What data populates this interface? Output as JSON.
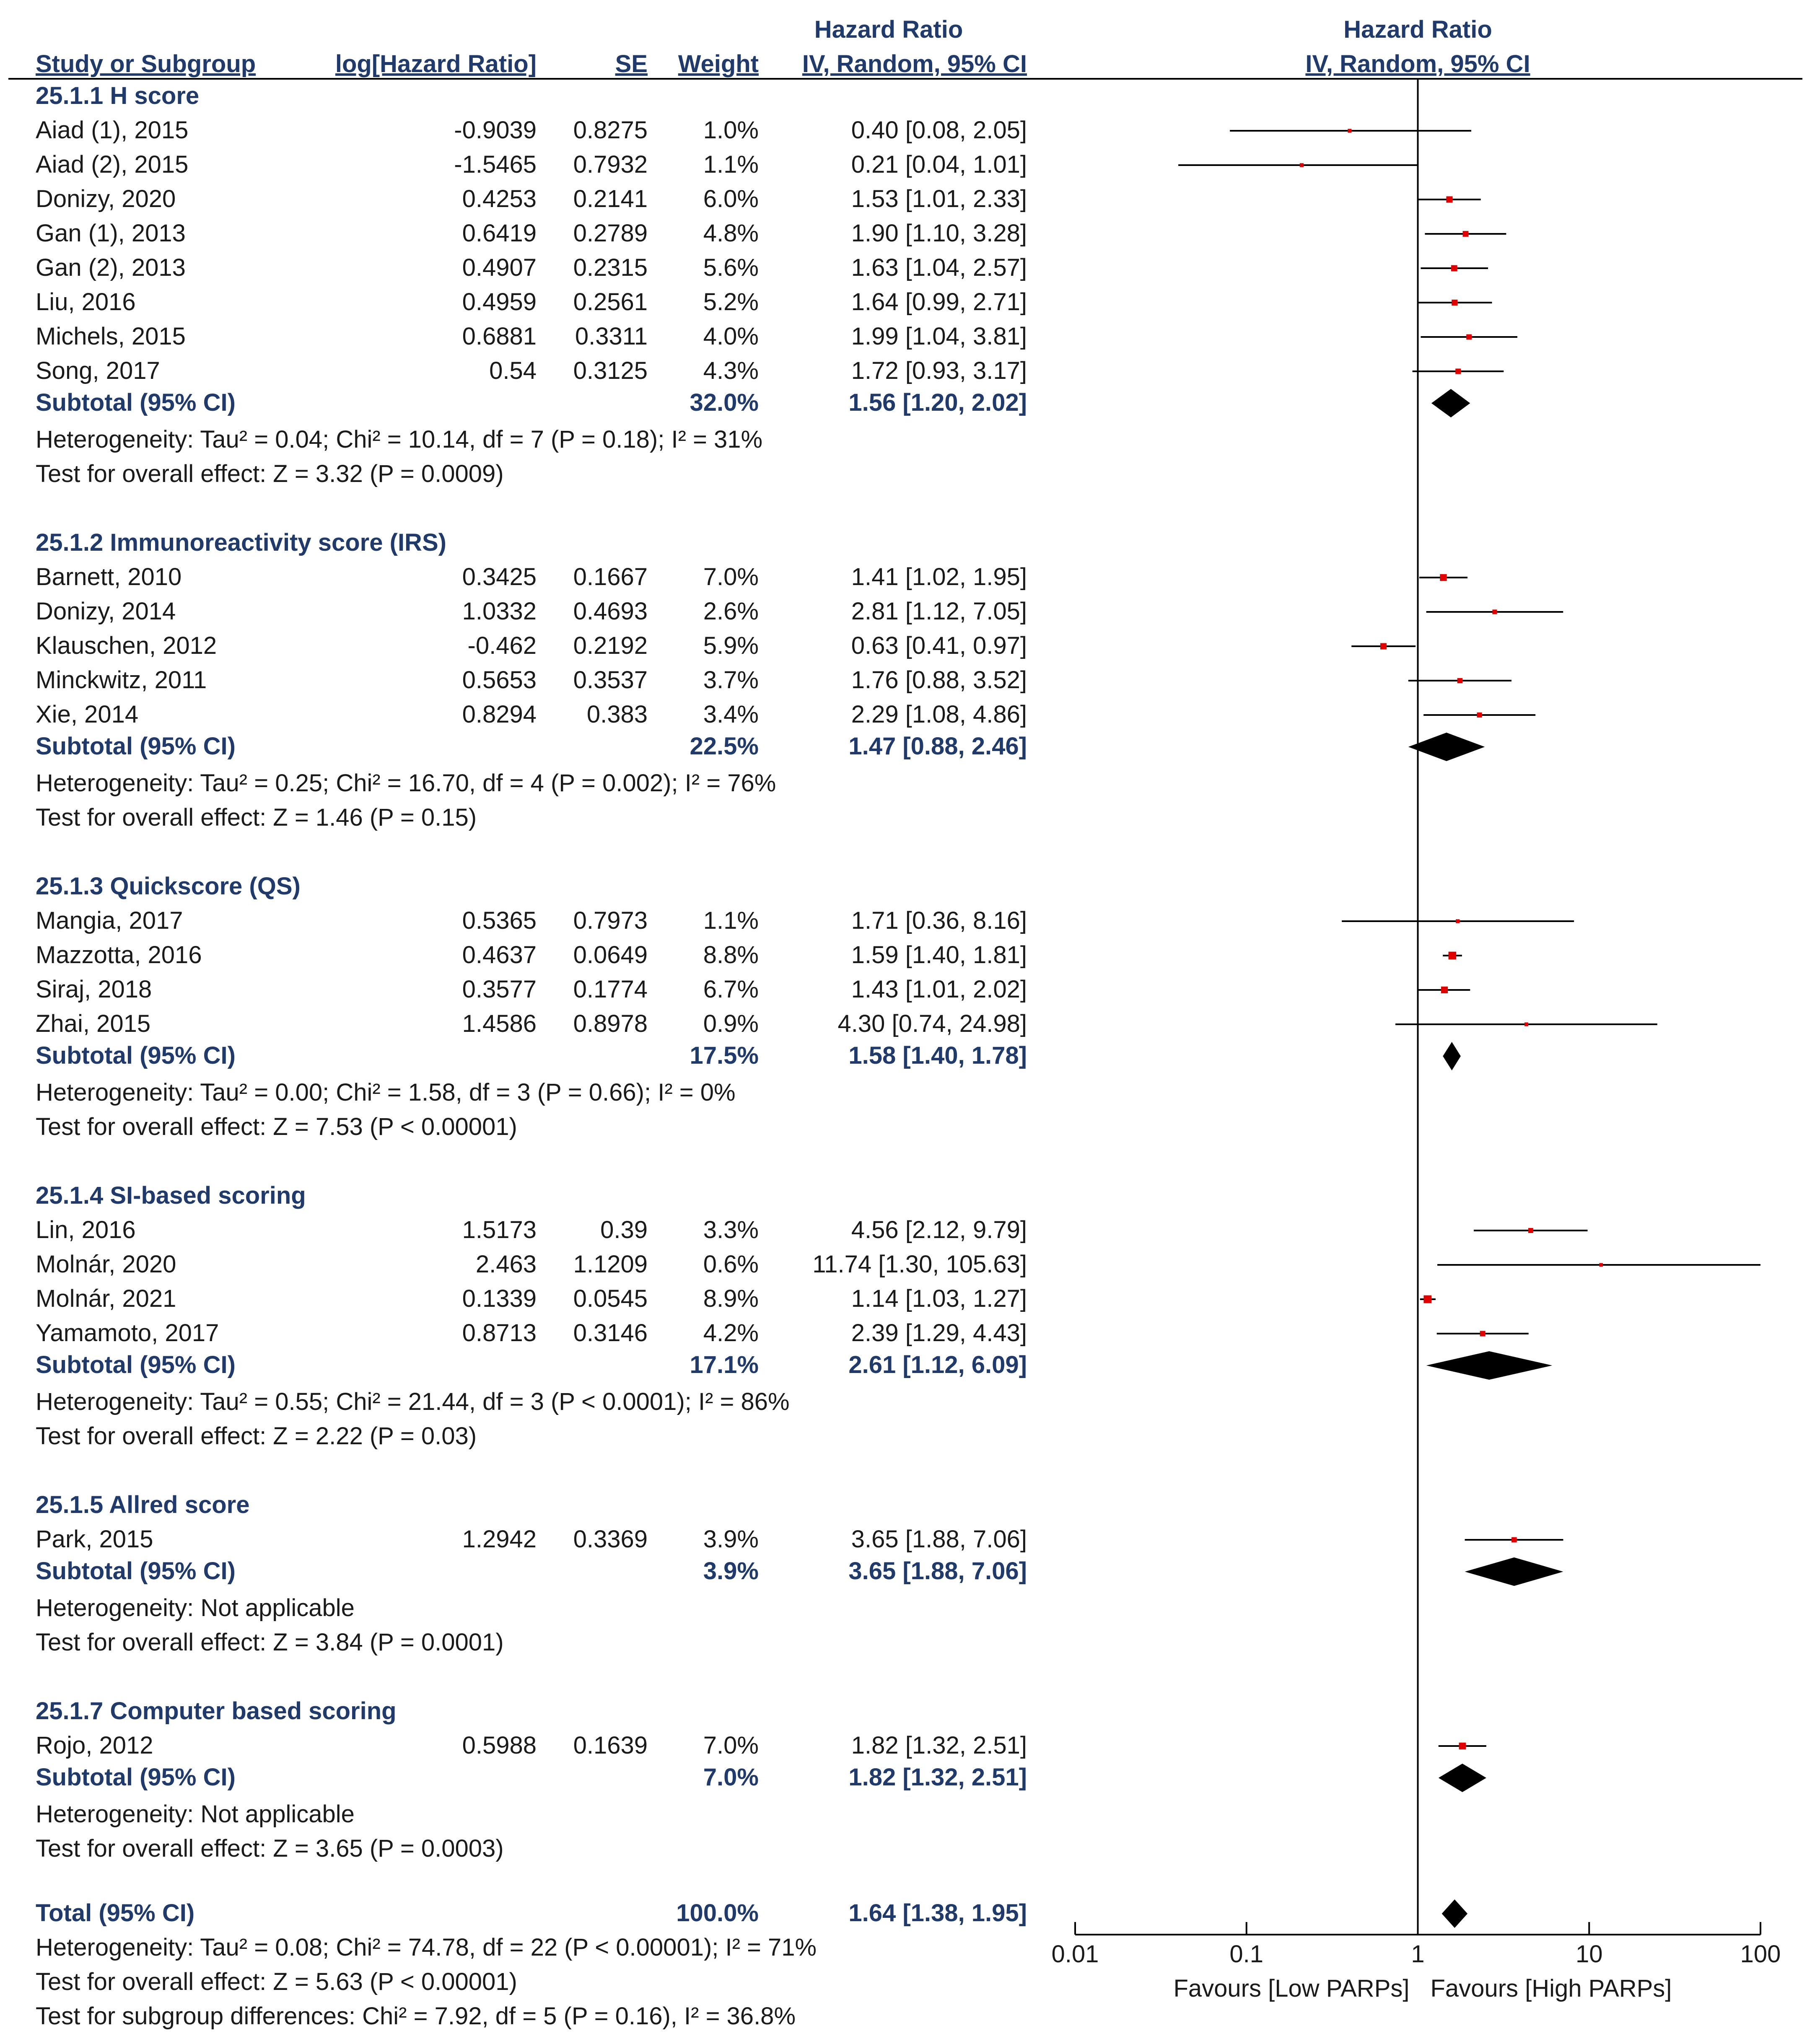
{
  "chart_data": {
    "type": "forest",
    "title": "Hazard Ratio",
    "plot_title": "Hazard Ratio",
    "plot_method": "IV, Random, 95% CI",
    "columns": {
      "study": "Study or Subgroup",
      "loghr": "log[Hazard Ratio]",
      "se": "SE",
      "weight": "Weight",
      "hr_title": "Hazard Ratio",
      "hr_method": "IV, Random, 95% CI"
    },
    "x_scale": "log",
    "xlim": [
      0.01,
      100
    ],
    "x_ticks": [
      0.01,
      0.1,
      1,
      10,
      100
    ],
    "x_tick_labels": [
      "0.01",
      "0.1",
      "1",
      "10",
      "100"
    ],
    "favours_left": "Favours [Low PARPs]",
    "favours_right": "Favours [High PARPs]",
    "groups": [
      {
        "title": "25.1.1 H score",
        "studies": [
          {
            "name": "Aiad (1), 2015",
            "loghr": "-0.9039",
            "se": "0.8275",
            "weight": "1.0%",
            "ci_text": "0.40 [0.08, 2.05]",
            "hr": 0.4,
            "lo": 0.08,
            "hi": 2.05
          },
          {
            "name": "Aiad (2), 2015",
            "loghr": "-1.5465",
            "se": "0.7932",
            "weight": "1.1%",
            "ci_text": "0.21 [0.04, 1.01]",
            "hr": 0.21,
            "lo": 0.04,
            "hi": 1.01
          },
          {
            "name": "Donizy, 2020",
            "loghr": "0.4253",
            "se": "0.2141",
            "weight": "6.0%",
            "ci_text": "1.53 [1.01, 2.33]",
            "hr": 1.53,
            "lo": 1.01,
            "hi": 2.33
          },
          {
            "name": "Gan (1), 2013",
            "loghr": "0.6419",
            "se": "0.2789",
            "weight": "4.8%",
            "ci_text": "1.90 [1.10, 3.28]",
            "hr": 1.9,
            "lo": 1.1,
            "hi": 3.28
          },
          {
            "name": "Gan (2), 2013",
            "loghr": "0.4907",
            "se": "0.2315",
            "weight": "5.6%",
            "ci_text": "1.63 [1.04, 2.57]",
            "hr": 1.63,
            "lo": 1.04,
            "hi": 2.57
          },
          {
            "name": "Liu, 2016",
            "loghr": "0.4959",
            "se": "0.2561",
            "weight": "5.2%",
            "ci_text": "1.64 [0.99, 2.71]",
            "hr": 1.64,
            "lo": 0.99,
            "hi": 2.71
          },
          {
            "name": "Michels, 2015",
            "loghr": "0.6881",
            "se": "0.3311",
            "weight": "4.0%",
            "ci_text": "1.99 [1.04, 3.81]",
            "hr": 1.99,
            "lo": 1.04,
            "hi": 3.81
          },
          {
            "name": "Song, 2017",
            "loghr": "0.54",
            "se": "0.3125",
            "weight": "4.3%",
            "ci_text": "1.72 [0.93, 3.17]",
            "hr": 1.72,
            "lo": 0.93,
            "hi": 3.17
          }
        ],
        "subtotal": {
          "label": "Subtotal (95% CI)",
          "weight": "32.0%",
          "ci_text": "1.56 [1.20, 2.02]",
          "hr": 1.56,
          "lo": 1.2,
          "hi": 2.02
        },
        "heterogeneity": "Heterogeneity: Tau² = 0.04; Chi² = 10.14, df = 7 (P = 0.18); I² = 31%",
        "overall": "Test for overall effect: Z = 3.32 (P = 0.0009)"
      },
      {
        "title": "25.1.2 Immunoreactivity score (IRS)",
        "studies": [
          {
            "name": "Barnett, 2010",
            "loghr": "0.3425",
            "se": "0.1667",
            "weight": "7.0%",
            "ci_text": "1.41 [1.02, 1.95]",
            "hr": 1.41,
            "lo": 1.02,
            "hi": 1.95
          },
          {
            "name": "Donizy, 2014",
            "loghr": "1.0332",
            "se": "0.4693",
            "weight": "2.6%",
            "ci_text": "2.81 [1.12, 7.05]",
            "hr": 2.81,
            "lo": 1.12,
            "hi": 7.05
          },
          {
            "name": "Klauschen, 2012",
            "loghr": "-0.462",
            "se": "0.2192",
            "weight": "5.9%",
            "ci_text": "0.63 [0.41, 0.97]",
            "hr": 0.63,
            "lo": 0.41,
            "hi": 0.97
          },
          {
            "name": "Minckwitz, 2011",
            "loghr": "0.5653",
            "se": "0.3537",
            "weight": "3.7%",
            "ci_text": "1.76 [0.88, 3.52]",
            "hr": 1.76,
            "lo": 0.88,
            "hi": 3.52
          },
          {
            "name": "Xie, 2014",
            "loghr": "0.8294",
            "se": "0.383",
            "weight": "3.4%",
            "ci_text": "2.29 [1.08, 4.86]",
            "hr": 2.29,
            "lo": 1.08,
            "hi": 4.86
          }
        ],
        "subtotal": {
          "label": "Subtotal (95% CI)",
          "weight": "22.5%",
          "ci_text": "1.47 [0.88, 2.46]",
          "hr": 1.47,
          "lo": 0.88,
          "hi": 2.46
        },
        "heterogeneity": "Heterogeneity: Tau² = 0.25; Chi² = 16.70, df = 4 (P = 0.002); I² = 76%",
        "overall": "Test for overall effect: Z = 1.46 (P = 0.15)"
      },
      {
        "title": "25.1.3 Quickscore (QS)",
        "studies": [
          {
            "name": "Mangia, 2017",
            "loghr": "0.5365",
            "se": "0.7973",
            "weight": "1.1%",
            "ci_text": "1.71 [0.36, 8.16]",
            "hr": 1.71,
            "lo": 0.36,
            "hi": 8.16
          },
          {
            "name": "Mazzotta, 2016",
            "loghr": "0.4637",
            "se": "0.0649",
            "weight": "8.8%",
            "ci_text": "1.59 [1.40, 1.81]",
            "hr": 1.59,
            "lo": 1.4,
            "hi": 1.81
          },
          {
            "name": "Siraj, 2018",
            "loghr": "0.3577",
            "se": "0.1774",
            "weight": "6.7%",
            "ci_text": "1.43 [1.01, 2.02]",
            "hr": 1.43,
            "lo": 1.01,
            "hi": 2.02
          },
          {
            "name": "Zhai, 2015",
            "loghr": "1.4586",
            "se": "0.8978",
            "weight": "0.9%",
            "ci_text": "4.30 [0.74, 24.98]",
            "hr": 4.3,
            "lo": 0.74,
            "hi": 24.98
          }
        ],
        "subtotal": {
          "label": "Subtotal (95% CI)",
          "weight": "17.5%",
          "ci_text": "1.58 [1.40, 1.78]",
          "hr": 1.58,
          "lo": 1.4,
          "hi": 1.78
        },
        "heterogeneity": "Heterogeneity: Tau² = 0.00; Chi² = 1.58, df = 3 (P = 0.66); I² = 0%",
        "overall": "Test for overall effect: Z = 7.53 (P < 0.00001)"
      },
      {
        "title": "25.1.4 SI-based scoring",
        "studies": [
          {
            "name": "Lin, 2016",
            "loghr": "1.5173",
            "se": "0.39",
            "weight": "3.3%",
            "ci_text": "4.56 [2.12, 9.79]",
            "hr": 4.56,
            "lo": 2.12,
            "hi": 9.79
          },
          {
            "name": "Molnár, 2020",
            "loghr": "2.463",
            "se": "1.1209",
            "weight": "0.6%",
            "ci_text": "11.74 [1.30, 105.63]",
            "hr": 11.74,
            "lo": 1.3,
            "hi": 105.63
          },
          {
            "name": "Molnár, 2021",
            "loghr": "0.1339",
            "se": "0.0545",
            "weight": "8.9%",
            "ci_text": "1.14 [1.03, 1.27]",
            "hr": 1.14,
            "lo": 1.03,
            "hi": 1.27
          },
          {
            "name": "Yamamoto, 2017",
            "loghr": "0.8713",
            "se": "0.3146",
            "weight": "4.2%",
            "ci_text": "2.39 [1.29, 4.43]",
            "hr": 2.39,
            "lo": 1.29,
            "hi": 4.43
          }
        ],
        "subtotal": {
          "label": "Subtotal (95% CI)",
          "weight": "17.1%",
          "ci_text": "2.61 [1.12, 6.09]",
          "hr": 2.61,
          "lo": 1.12,
          "hi": 6.09
        },
        "heterogeneity": "Heterogeneity: Tau² = 0.55; Chi² = 21.44, df = 3 (P < 0.0001); I² = 86%",
        "overall": "Test for overall effect: Z = 2.22 (P = 0.03)"
      },
      {
        "title": "25.1.5 Allred score",
        "studies": [
          {
            "name": "Park, 2015",
            "loghr": "1.2942",
            "se": "0.3369",
            "weight": "3.9%",
            "ci_text": "3.65 [1.88, 7.06]",
            "hr": 3.65,
            "lo": 1.88,
            "hi": 7.06
          }
        ],
        "subtotal": {
          "label": "Subtotal (95% CI)",
          "weight": "3.9%",
          "ci_text": "3.65 [1.88, 7.06]",
          "hr": 3.65,
          "lo": 1.88,
          "hi": 7.06
        },
        "heterogeneity": "Heterogeneity: Not applicable",
        "overall": "Test for overall effect: Z = 3.84 (P = 0.0001)"
      },
      {
        "title": "25.1.7 Computer based scoring",
        "studies": [
          {
            "name": "Rojo, 2012",
            "loghr": "0.5988",
            "se": "0.1639",
            "weight": "7.0%",
            "ci_text": "1.82 [1.32, 2.51]",
            "hr": 1.82,
            "lo": 1.32,
            "hi": 2.51
          }
        ],
        "subtotal": {
          "label": "Subtotal (95% CI)",
          "weight": "7.0%",
          "ci_text": "1.82 [1.32, 2.51]",
          "hr": 1.82,
          "lo": 1.32,
          "hi": 2.51
        },
        "heterogeneity": "Heterogeneity: Not applicable",
        "overall": "Test for overall effect: Z = 3.65 (P = 0.0003)"
      }
    ],
    "total": {
      "label": "Total (95% CI)",
      "weight": "100.0%",
      "ci_text": "1.64 [1.38, 1.95]",
      "hr": 1.64,
      "lo": 1.38,
      "hi": 1.95,
      "heterogeneity": "Heterogeneity: Tau² = 0.08; Chi² = 74.78, df = 22 (P < 0.00001); I² = 71%",
      "overall": "Test for overall effect: Z = 5.63 (P < 0.00001)",
      "subgroup": "Test for subgroup differences: Chi² = 7.92, df = 5 (P = 0.16), I² = 36.8%"
    },
    "colors": {
      "point": "#e00000",
      "text": "#1a1a1a",
      "heading": "#1f3a6b",
      "line": "#000000"
    }
  }
}
